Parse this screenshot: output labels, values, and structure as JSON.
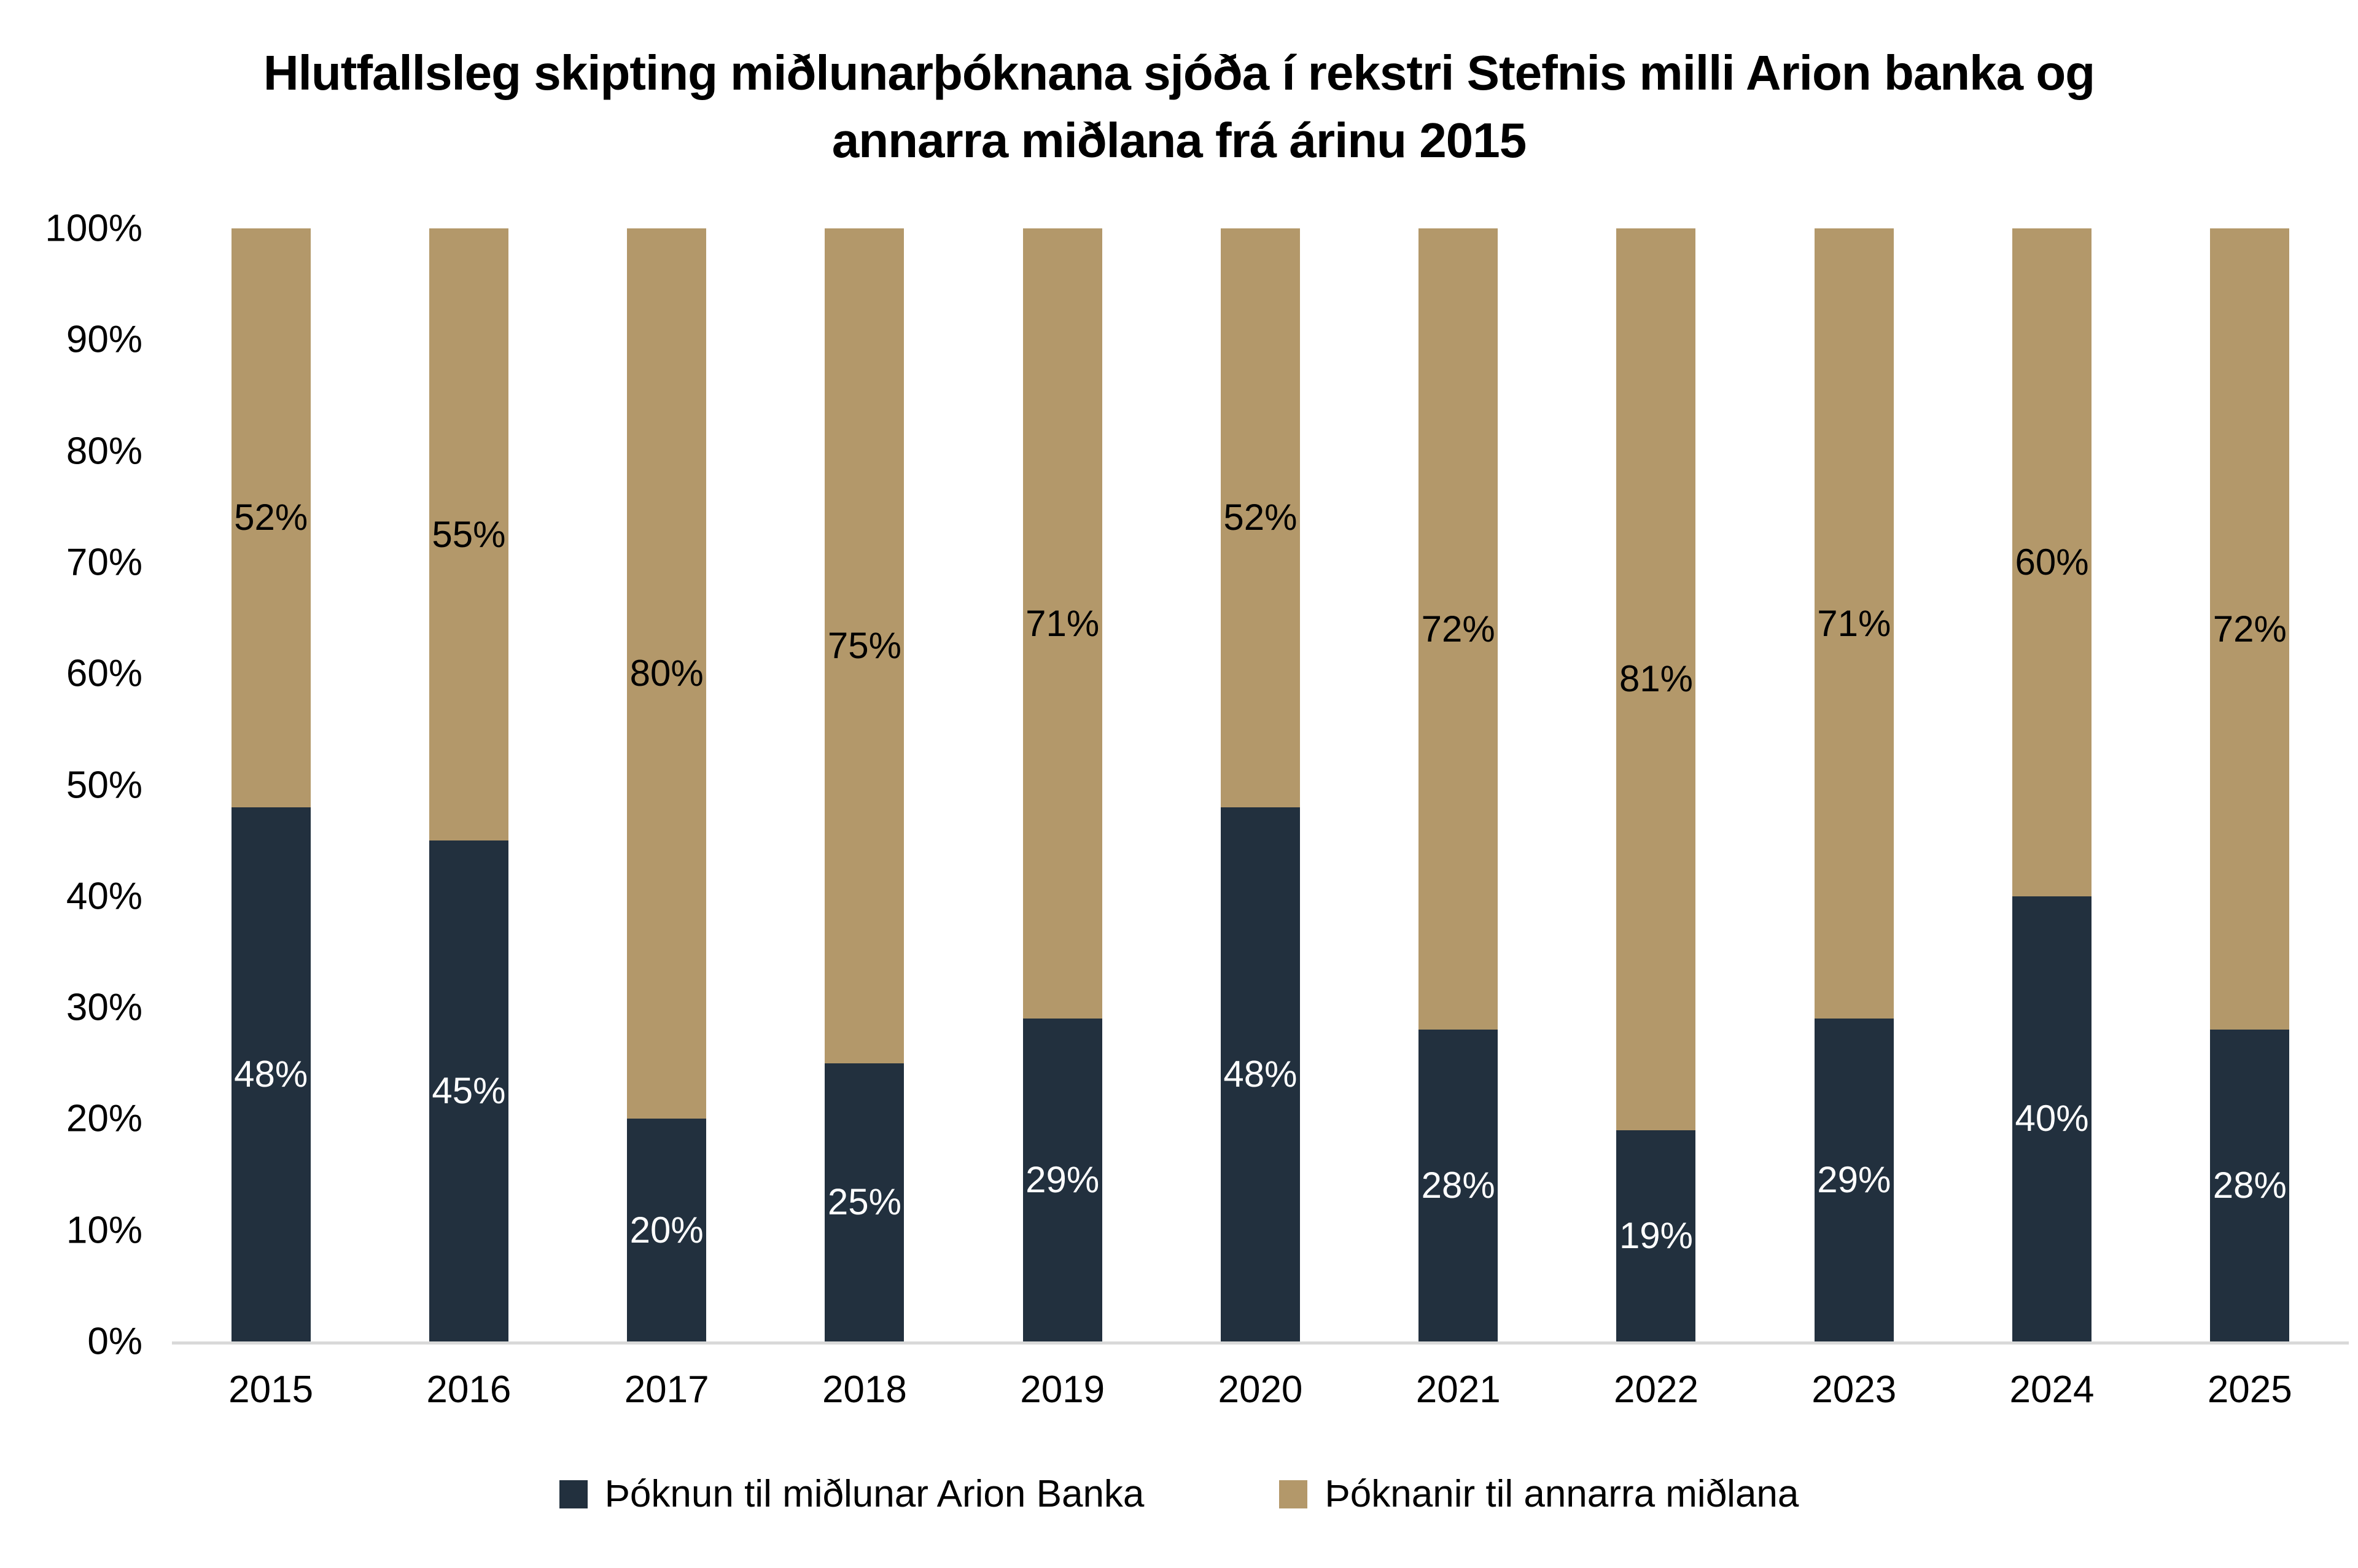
{
  "title": "Hlutfallsleg skipting miðlunarþóknana sjóða í rekstri Stefnis milli Arion banka og annarra miðlana frá árinu 2015",
  "colors": {
    "arion_navy": "#22303E",
    "other_tan": "#B3986A",
    "axis_line": "#D9D9D9",
    "label_on_navy": "#FFFFFF",
    "label_on_tan": "#000000",
    "background": "#FFFFFF"
  },
  "y_axis": {
    "ticks_top_to_bottom": [
      "100%",
      "90%",
      "80%",
      "70%",
      "60%",
      "50%",
      "40%",
      "30%",
      "20%",
      "10%",
      "0%"
    ]
  },
  "legend": {
    "items": [
      {
        "label": "Þóknun til miðlunar Arion Banka",
        "color": "#22303E"
      },
      {
        "label": "Þóknanir til annarra miðlana",
        "color": "#B3986A"
      }
    ],
    "position": "bottom"
  },
  "chart_data": {
    "type": "bar",
    "stacked": true,
    "percent_stacked": true,
    "unit": "%",
    "title": "Hlutfallsleg skipting miðlunarþóknana sjóða í rekstri Stefnis milli Arion banka og annarra miðlana frá árinu 2015",
    "categories": [
      "2015",
      "2016",
      "2017",
      "2018",
      "2019",
      "2020",
      "2021",
      "2022",
      "2023",
      "2024",
      "2025"
    ],
    "series": [
      {
        "name": "Þóknun til miðlunar Arion Banka",
        "color": "#22303E",
        "label_color": "#FFFFFF",
        "values": [
          48,
          45,
          20,
          25,
          29,
          48,
          28,
          19,
          29,
          40,
          28
        ]
      },
      {
        "name": "Þóknanir til annarra miðlana",
        "color": "#B3986A",
        "label_color": "#000000",
        "values": [
          52,
          55,
          80,
          75,
          71,
          52,
          72,
          81,
          71,
          60,
          72
        ]
      }
    ],
    "value_labels": "centered-in-segment",
    "xlabel": "",
    "ylabel": "",
    "ylim": [
      0,
      100
    ],
    "y_tick_step": 10,
    "grid": false,
    "legend_position": "bottom"
  }
}
